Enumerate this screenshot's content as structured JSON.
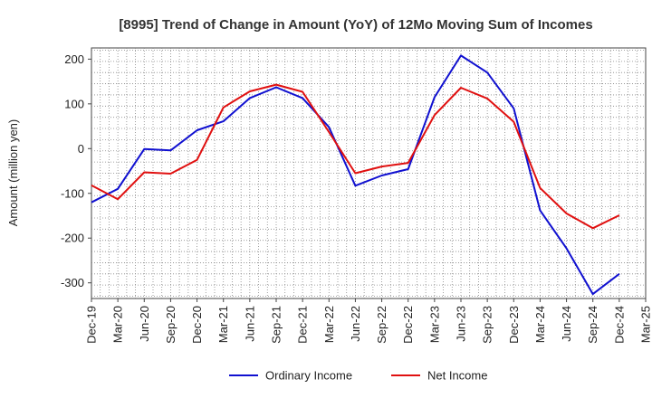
{
  "chart_data": {
    "type": "line",
    "title": "[8995]  Trend of Change in Amount (YoY) of 12Mo Moving Sum of Incomes",
    "xlabel": "",
    "ylabel": "Amount (million yen)",
    "categories": [
      "Dec-19",
      "Mar-20",
      "Jun-20",
      "Sep-20",
      "Dec-20",
      "Mar-21",
      "Jun-21",
      "Sep-21",
      "Dec-21",
      "Mar-22",
      "Jun-22",
      "Sep-22",
      "Dec-22",
      "Mar-23",
      "Jun-23",
      "Sep-23",
      "Dec-23",
      "Mar-24",
      "Jun-24",
      "Sep-24",
      "Dec-24",
      "Mar-25"
    ],
    "ylim": [
      -335,
      225
    ],
    "yticks": [
      200,
      100,
      0,
      -100,
      -200,
      -300
    ],
    "grid": true,
    "legend_position": "bottom",
    "series": [
      {
        "name": "Ordinary Income",
        "color": "#1010d0",
        "values": [
          -120,
          -90,
          -1,
          -4,
          41,
          61,
          113,
          137,
          113,
          48,
          -83,
          -60,
          -46,
          115,
          208,
          170,
          90,
          -138,
          -223,
          -325,
          -280,
          null
        ]
      },
      {
        "name": "Net Income",
        "color": "#e01010",
        "values": [
          -82,
          -113,
          -53,
          -56,
          -25,
          92,
          128,
          143,
          127,
          37,
          -55,
          -40,
          -32,
          75,
          136,
          112,
          60,
          -88,
          -145,
          -178,
          -149,
          null
        ]
      }
    ]
  }
}
